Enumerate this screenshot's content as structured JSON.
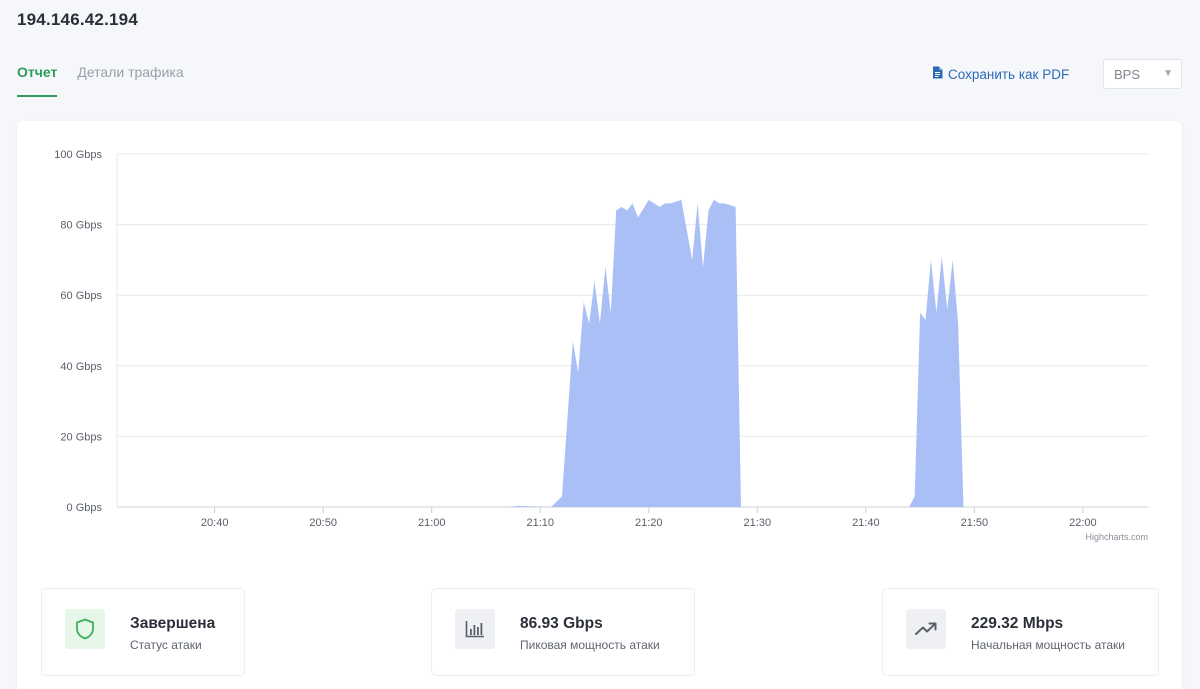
{
  "header": {
    "ip": "194.146.42.194"
  },
  "tabs": [
    {
      "label": "Отчет",
      "active": true
    },
    {
      "label": "Детали трафика",
      "active": false
    }
  ],
  "toolbar": {
    "save_pdf_label": "Сохранить как PDF",
    "unit_select_value": "BPS"
  },
  "colors": {
    "accent_green": "#2f9b5a",
    "link_blue": "#2c6bb3",
    "area_fill": "#a9bff5"
  },
  "chart_data": {
    "type": "area",
    "title": "",
    "xlabel": "",
    "ylabel": "",
    "ylim": [
      0,
      100
    ],
    "y_unit": "Gbps",
    "y_ticks": [
      "0 Gbps",
      "20 Gbps",
      "40 Gbps",
      "60 Gbps",
      "80 Gbps",
      "100 Gbps"
    ],
    "x_ticks": [
      "20:40",
      "20:50",
      "21:00",
      "21:10",
      "21:20",
      "21:30",
      "21:40",
      "21:50",
      "22:00"
    ],
    "x_range": [
      "20:31",
      "22:06"
    ],
    "grid": true,
    "credit": "Highcharts.com",
    "series": [
      {
        "x": [
          "20:31",
          "21:07",
          "21:08",
          "21:11",
          "21:12",
          "21:13",
          "21:13:30",
          "21:14",
          "21:14:30",
          "21:15",
          "21:15:30",
          "21:16",
          "21:16:30",
          "21:17",
          "21:17:30",
          "21:18",
          "21:18:30",
          "21:19",
          "21:20",
          "21:21",
          "21:21:30",
          "21:22",
          "21:23",
          "21:24",
          "21:24:30",
          "21:25",
          "21:25:30",
          "21:26",
          "21:26:30",
          "21:27",
          "21:28",
          "21:28:30",
          "21:29",
          "21:44",
          "21:44:30",
          "21:45",
          "21:45:30",
          "21:46",
          "21:46:30",
          "21:47",
          "21:47:30",
          "21:48",
          "21:48:30",
          "21:49",
          "21:50",
          "22:06"
        ],
        "values": [
          0,
          0,
          0.3,
          0,
          3,
          47,
          38,
          58,
          52,
          64,
          52,
          68,
          55,
          84,
          85,
          84,
          86,
          82,
          87,
          85,
          86,
          86,
          87,
          70,
          86,
          68,
          84,
          87,
          86,
          86,
          85,
          0,
          0,
          0,
          3,
          55,
          53,
          70,
          55,
          71,
          56,
          70,
          52,
          0,
          0,
          0
        ]
      }
    ]
  },
  "stats": [
    {
      "value": "Завершена",
      "label": "Статус атаки",
      "icon": "shield-icon"
    },
    {
      "value": "86.93 Gbps",
      "label": "Пиковая мощность атаки",
      "icon": "bar-chart-icon"
    },
    {
      "value": "229.32 Mbps",
      "label": "Начальная мощность атаки",
      "icon": "trending-up-icon"
    }
  ]
}
